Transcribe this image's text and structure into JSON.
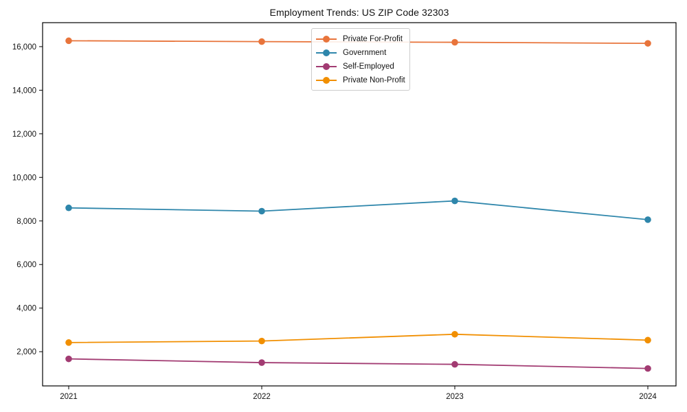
{
  "chart_data": {
    "type": "line",
    "title": "Employment Trends: US ZIP Code 32303",
    "categories": [
      "2021",
      "2022",
      "2023",
      "2024"
    ],
    "series": [
      {
        "name": "Private For-Profit",
        "color": "#E8743B",
        "values": [
          16270,
          16230,
          16200,
          16150
        ]
      },
      {
        "name": "Government",
        "color": "#2E86AB",
        "values": [
          8600,
          8450,
          8920,
          8060
        ]
      },
      {
        "name": "Self-Employed",
        "color": "#A23B72",
        "values": [
          1670,
          1500,
          1420,
          1230
        ]
      },
      {
        "name": "Private Non-Profit",
        "color": "#F18F01",
        "values": [
          2420,
          2490,
          2800,
          2530
        ]
      }
    ],
    "xlabel": "",
    "ylabel": "",
    "ylim": [
      430,
      17100
    ],
    "yticks": [
      2000,
      4000,
      6000,
      8000,
      10000,
      12000,
      14000,
      16000
    ],
    "ytick_format": "thousands-comma",
    "grid": false,
    "marker": "o",
    "legend_position": "upper center",
    "axis_color": "#000000",
    "text_color": "#111111",
    "background_color": "#ffffff"
  }
}
